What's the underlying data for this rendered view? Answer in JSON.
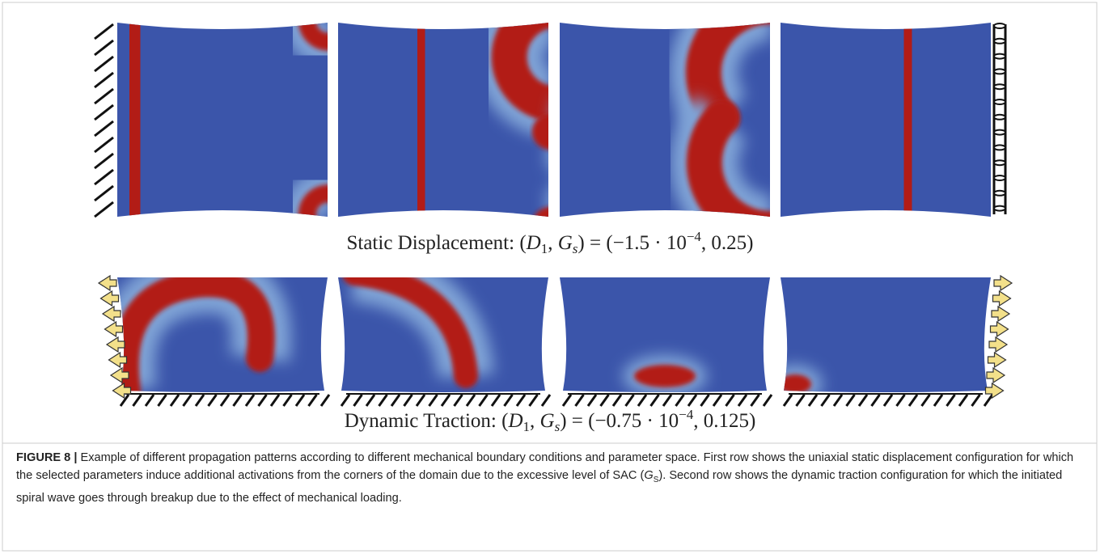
{
  "figure": {
    "rows": [
      {
        "label": [
          "Static Displacement: (",
          "D",
          "1",
          ", ",
          "G",
          "s",
          ") = (−1.5 · 10",
          "−4",
          ", 0.25)"
        ]
      },
      {
        "label": [
          "Dynamic Traction: (",
          "D",
          "1",
          ", ",
          "G",
          "s",
          ") = (−0.75 · 10",
          "−4",
          ", 0.125)"
        ]
      }
    ],
    "caption": {
      "label": "FIGURE 8 |",
      "text": [
        " Example of different propagation patterns according to different mechanical boundary conditions and parameter space. First row shows the uniaxial static displacement configuration for which the selected parameters induce additional activations from the corners of the domain due to the excessive level of SAC (",
        "G",
        "S",
        "). Second row shows the dynamic traction configuration for which the initiated spiral wave goes through breakup due to the effect of mechanical loading."
      ]
    }
  }
}
